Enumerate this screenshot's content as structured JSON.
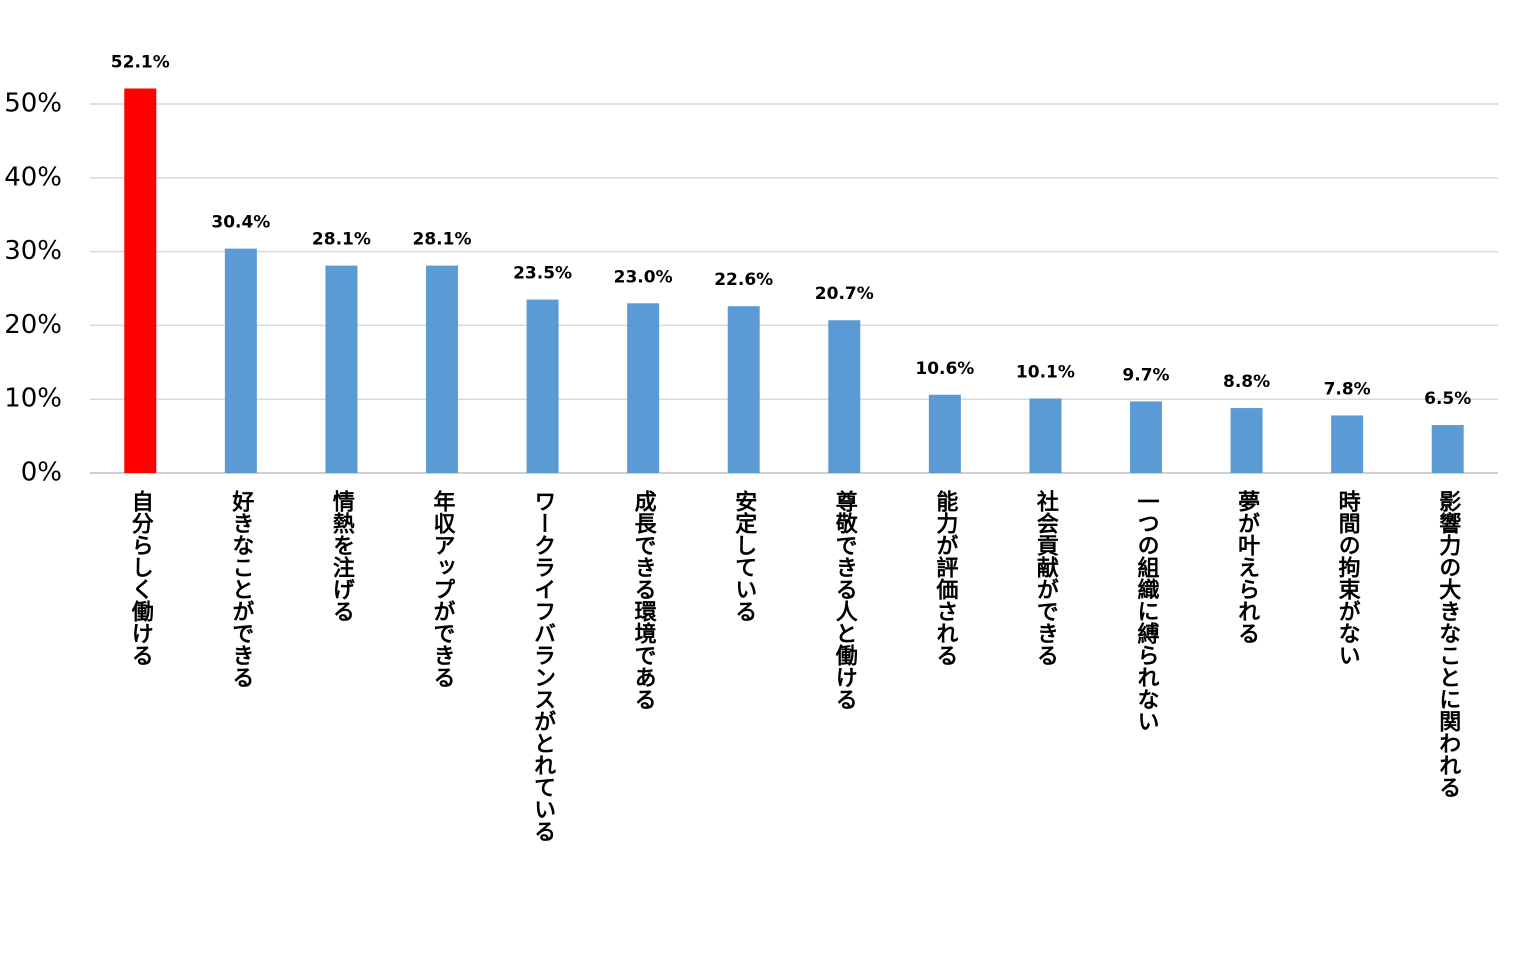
{
  "chart_data": {
    "type": "bar",
    "categories": [
      "自分らしく働ける",
      "好きなことができる",
      "情熱を注げる",
      "年収アップができる",
      "ワークライフバランスがとれている",
      "成長できる環境である",
      "安定している",
      "尊敬できる人と働ける",
      "能力が評価される",
      "社会貢献ができる",
      "一つの組織に縛られない",
      "夢が叶えられる",
      "時間の拘束がない",
      "影響力の大きなことに関われる"
    ],
    "values": [
      52.1,
      30.4,
      28.1,
      28.1,
      23.5,
      23.0,
      22.6,
      20.7,
      10.6,
      10.1,
      9.7,
      8.8,
      7.8,
      6.5
    ],
    "value_labels": [
      "52.1%",
      "30.4%",
      "28.1%",
      "28.1%",
      "23.5%",
      "23.0%",
      "22.6%",
      "20.7%",
      "10.6%",
      "10.1%",
      "9.7%",
      "8.8%",
      "7.8%",
      "6.5%"
    ],
    "colors": [
      "#ff0000",
      "#5b9bd5",
      "#5b9bd5",
      "#5b9bd5",
      "#5b9bd5",
      "#5b9bd5",
      "#5b9bd5",
      "#5b9bd5",
      "#5b9bd5",
      "#5b9bd5",
      "#5b9bd5",
      "#5b9bd5",
      "#5b9bd5",
      "#5b9bd5"
    ],
    "ylim": [
      0,
      50
    ],
    "yticks": [
      {
        "value": 0,
        "label": "0%"
      },
      {
        "value": 10,
        "label": "10%"
      },
      {
        "value": 20,
        "label": "20%"
      },
      {
        "value": 30,
        "label": "30%"
      },
      {
        "value": 40,
        "label": "40%"
      },
      {
        "value": 50,
        "label": "50%"
      }
    ],
    "grid": true
  }
}
